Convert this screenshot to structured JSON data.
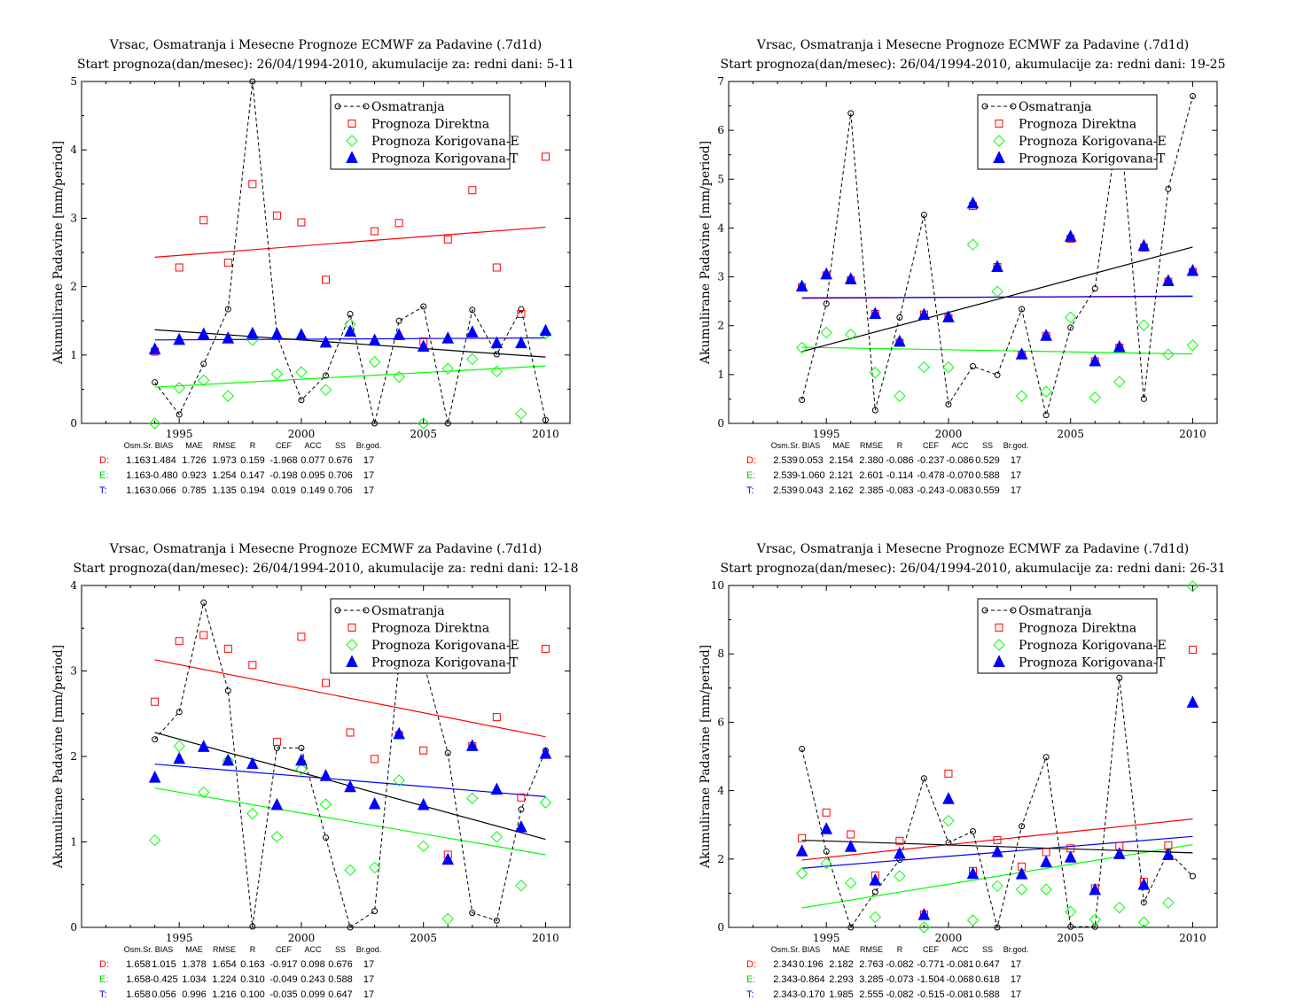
{
  "chart_data": [
    {
      "type": "scatter",
      "title": "Vrsac, Osmatranja i Mesecne Prognoze ECMWF za Padavine (.7d1d)",
      "subtitle": "Start prognoza(dan/mesec): 26/04/1994-2010, akumulacije za: redni dani: 5-11",
      "ylabel": "Akumulirane Padavine [mm/period]",
      "xlabel": "",
      "xlim": [
        1991,
        2011
      ],
      "ylim": [
        0,
        5
      ],
      "yticks": [
        0,
        1,
        2,
        3,
        4,
        5
      ],
      "xticks": [
        1995,
        2000,
        2005,
        2010
      ],
      "grid": false,
      "legend_position": "top-right",
      "x": [
        1994,
        1995,
        1996,
        1997,
        1998,
        1999,
        2000,
        2001,
        2002,
        2003,
        2004,
        2005,
        2006,
        2007,
        2008,
        2009,
        2010
      ],
      "series": [
        {
          "name": "Osmatranja",
          "color": "#000000",
          "marker": "circle",
          "line": "dashed",
          "values": [
            0.6,
            0.13,
            0.87,
            1.67,
            5.0,
            1.29,
            0.34,
            0.7,
            1.6,
            0.0,
            1.5,
            1.71,
            0.0,
            1.66,
            1.01,
            1.67,
            0.05
          ]
        },
        {
          "name": "Prognoza Direktna",
          "color": "#ff0000",
          "marker": "square",
          "values": [
            1.05,
            2.28,
            2.97,
            2.35,
            3.5,
            3.04,
            2.94,
            2.1,
            3.98,
            2.81,
            2.93,
            1.2,
            2.69,
            3.41,
            2.28,
            1.6,
            3.9
          ]
        },
        {
          "name": "Prognoza Korigovana-E",
          "color": "#00ff00",
          "marker": "diamond",
          "values": [
            0.0,
            0.52,
            0.63,
            0.4,
            1.22,
            0.72,
            0.75,
            0.49,
            1.45,
            0.9,
            0.68,
            0.0,
            0.8,
            0.94,
            0.76,
            0.14,
            1.31
          ]
        },
        {
          "name": "Prognoza Korigovana-T",
          "color": "#0000ff",
          "marker": "triangle",
          "values": [
            1.08,
            1.22,
            1.3,
            1.24,
            1.31,
            1.3,
            1.29,
            1.18,
            1.34,
            1.21,
            1.29,
            1.12,
            1.24,
            1.33,
            1.17,
            1.17,
            1.35
          ]
        }
      ],
      "trend_lines": [
        {
          "color": "#ff0000",
          "y_start": 2.43,
          "y_end": 2.87
        },
        {
          "color": "#00ff00",
          "y_start": 0.53,
          "y_end": 0.84
        },
        {
          "color": "#0000ff",
          "y_start": 1.22,
          "y_end": 1.25
        },
        {
          "color": "#000000",
          "y_start": 1.37,
          "y_end": 0.97
        }
      ],
      "stats": {
        "headers": [
          "Osm.Sr.",
          "BIAS",
          "MAE",
          "RMSE",
          "R",
          "CEF",
          "ACC",
          "SS",
          "Br.god."
        ],
        "rows": [
          {
            "label": "D:",
            "color": "#ff0000",
            "values": [
              "1.163",
              "1.484",
              "1.726",
              "1.973",
              "0.159",
              "-1.968",
              "0.077",
              "0.676",
              "17"
            ]
          },
          {
            "label": "E:",
            "color": "#00cc00",
            "values": [
              "1.163",
              "-0.480",
              "0.923",
              "1.254",
              "0.147",
              "-0.198",
              "0.095",
              "0.706",
              "17"
            ]
          },
          {
            "label": "T:",
            "color": "#0000ff",
            "values": [
              "1.163",
              "0.066",
              "0.785",
              "1.135",
              "0.194",
              "0.019",
              "0.149",
              "0.706",
              "17"
            ]
          }
        ]
      }
    },
    {
      "type": "scatter",
      "title": "Vrsac, Osmatranja i Mesecne Prognoze ECMWF za Padavine (.7d1d)",
      "subtitle": "Start prognoza(dan/mesec): 26/04/1994-2010, akumulacije za: redni dani: 19-25",
      "ylabel": "Akumulirane Padavine [mm/period]",
      "xlabel": "",
      "xlim": [
        1991,
        2011
      ],
      "ylim": [
        0,
        7
      ],
      "yticks": [
        0,
        1,
        2,
        3,
        4,
        5,
        6,
        7
      ],
      "xticks": [
        1995,
        2000,
        2005,
        2010
      ],
      "grid": false,
      "legend_position": "top-right",
      "x": [
        1994,
        1995,
        1996,
        1997,
        1998,
        1999,
        2000,
        2001,
        2002,
        2003,
        2004,
        2005,
        2006,
        2007,
        2008,
        2009,
        2010
      ],
      "series": [
        {
          "name": "Osmatranja",
          "color": "#000000",
          "marker": "circle",
          "line": "dashed",
          "values": [
            0.48,
            2.45,
            6.35,
            0.27,
            2.17,
            4.27,
            0.39,
            1.17,
            0.99,
            2.34,
            0.17,
            1.96,
            2.76,
            6.3,
            0.5,
            4.8,
            6.7
          ]
        },
        {
          "name": "Prognoza Direktna",
          "color": "#ff0000",
          "marker": "square",
          "values": [
            2.79,
            3.03,
            2.93,
            2.24,
            1.65,
            2.23,
            2.16,
            4.45,
            3.2,
            1.4,
            1.79,
            3.78,
            1.27,
            1.55,
            3.6,
            2.9,
            3.1
          ]
        },
        {
          "name": "Prognoza Korigovana-E",
          "color": "#00ff00",
          "marker": "diamond",
          "values": [
            1.55,
            1.86,
            1.82,
            1.04,
            0.56,
            1.15,
            1.15,
            3.66,
            2.7,
            0.56,
            0.65,
            2.17,
            0.53,
            0.85,
            2.01,
            1.41,
            1.6
          ]
        },
        {
          "name": "Prognoza Korigovana-T",
          "color": "#0000ff",
          "marker": "triangle",
          "values": [
            2.8,
            3.05,
            2.95,
            2.24,
            1.67,
            2.22,
            2.17,
            4.5,
            3.2,
            1.41,
            1.79,
            3.82,
            1.27,
            1.56,
            3.63,
            2.91,
            3.12
          ]
        }
      ],
      "trend_lines": [
        {
          "color": "#ff0000",
          "y_start": 2.56,
          "y_end": 2.61
        },
        {
          "color": "#00ff00",
          "y_start": 1.56,
          "y_end": 1.42
        },
        {
          "color": "#0000ff",
          "y_start": 2.57,
          "y_end": 2.6
        },
        {
          "color": "#000000",
          "y_start": 1.47,
          "y_end": 3.61
        }
      ],
      "stats": {
        "headers": [
          "Osm.Sr.",
          "BIAS",
          "MAE",
          "RMSE",
          "R",
          "CEF",
          "ACC",
          "SS",
          "Br.god."
        ],
        "rows": [
          {
            "label": "D:",
            "color": "#ff0000",
            "values": [
              "2.539",
              "0.053",
              "2.154",
              "2.380",
              "-0.086",
              "-0.237",
              "-0.086",
              "0.529",
              "17"
            ]
          },
          {
            "label": "E:",
            "color": "#00cc00",
            "values": [
              "2.539",
              "-1.060",
              "2.121",
              "2.601",
              "-0.114",
              "-0.478",
              "-0.070",
              "0.588",
              "17"
            ]
          },
          {
            "label": "T:",
            "color": "#0000ff",
            "values": [
              "2.539",
              "0.043",
              "2.162",
              "2.385",
              "-0.083",
              "-0.243",
              "-0.083",
              "0.559",
              "17"
            ]
          }
        ]
      }
    },
    {
      "type": "scatter",
      "title": "Vrsac, Osmatranja i Mesecne Prognoze ECMWF za Padavine (.7d1d)",
      "subtitle": "Start prognoza(dan/mesec): 26/04/1994-2010, akumulacije za: redni dani: 12-18",
      "ylabel": "Akumulirane Padavine [mm/period]",
      "xlabel": "",
      "xlim": [
        1991,
        2011
      ],
      "ylim": [
        0,
        4
      ],
      "yticks": [
        0,
        1,
        2,
        3,
        4
      ],
      "xticks": [
        1995,
        2000,
        2005,
        2010
      ],
      "grid": false,
      "legend_position": "top-right",
      "x": [
        1994,
        1995,
        1996,
        1997,
        1998,
        1999,
        2000,
        2001,
        2002,
        2003,
        2004,
        2005,
        2006,
        2007,
        2008,
        2009,
        2010
      ],
      "series": [
        {
          "name": "Osmatranja",
          "color": "#000000",
          "marker": "circle",
          "line": "dashed",
          "values": [
            2.2,
            2.52,
            3.8,
            2.77,
            0.01,
            2.1,
            2.1,
            1.05,
            0.0,
            0.19,
            3.1,
            3.1,
            2.04,
            0.17,
            0.08,
            1.38,
            2.07
          ]
        },
        {
          "name": "Prognoza Direktna",
          "color": "#ff0000",
          "marker": "square",
          "values": [
            2.64,
            3.35,
            3.42,
            3.26,
            3.07,
            2.17,
            3.4,
            2.86,
            2.28,
            1.97,
            2.25,
            2.07,
            0.85,
            2.12,
            2.46,
            1.52,
            3.26
          ]
        },
        {
          "name": "Prognoza Korigovana-E",
          "color": "#00ff00",
          "marker": "diamond",
          "values": [
            1.02,
            2.12,
            1.58,
            1.95,
            1.33,
            1.06,
            1.85,
            1.44,
            0.67,
            0.7,
            1.72,
            0.95,
            0.1,
            1.51,
            1.06,
            0.49,
            1.46
          ]
        },
        {
          "name": "Prognoza Korigovana-T",
          "color": "#0000ff",
          "marker": "triangle",
          "values": [
            1.75,
            1.97,
            2.11,
            1.95,
            1.91,
            1.43,
            1.95,
            1.77,
            1.64,
            1.44,
            2.26,
            1.43,
            0.79,
            2.12,
            1.61,
            1.17,
            2.03
          ]
        }
      ],
      "trend_lines": [
        {
          "color": "#ff0000",
          "y_start": 3.13,
          "y_end": 2.23
        },
        {
          "color": "#00ff00",
          "y_start": 1.63,
          "y_end": 0.85
        },
        {
          "color": "#0000ff",
          "y_start": 1.91,
          "y_end": 1.53
        },
        {
          "color": "#000000",
          "y_start": 2.28,
          "y_end": 1.03
        }
      ],
      "stats": {
        "headers": [
          "Osm.Sr.",
          "BIAS",
          "MAE",
          "RMSE",
          "R",
          "CEF",
          "ACC",
          "SS",
          "Br.god."
        ],
        "rows": [
          {
            "label": "D:",
            "color": "#ff0000",
            "values": [
              "1.658",
              "1.015",
              "1.378",
              "1.654",
              "0.163",
              "-0.917",
              "0.098",
              "0.676",
              "17"
            ]
          },
          {
            "label": "E:",
            "color": "#00cc00",
            "values": [
              "1.658",
              "-0.425",
              "1.034",
              "1.224",
              "0.310",
              "-0.049",
              "0.243",
              "0.588",
              "17"
            ]
          },
          {
            "label": "T:",
            "color": "#0000ff",
            "values": [
              "1.658",
              "0.056",
              "0.996",
              "1.216",
              "0.100",
              "-0.035",
              "0.099",
              "0.647",
              "17"
            ]
          }
        ]
      }
    },
    {
      "type": "scatter",
      "title": "Vrsac, Osmatranja i Mesecne Prognoze ECMWF za Padavine (.7d1d)",
      "subtitle": "Start prognoza(dan/mesec): 26/04/1994-2010, akumulacije za: redni dani: 26-31",
      "ylabel": "Akumulirane Padavine [mm/period]",
      "xlabel": "",
      "xlim": [
        1991,
        2011
      ],
      "ylim": [
        0,
        10
      ],
      "yticks": [
        0,
        2,
        4,
        6,
        8,
        10
      ],
      "xticks": [
        1995,
        2000,
        2005,
        2010
      ],
      "grid": false,
      "legend_position": "top-right",
      "x": [
        1994,
        1995,
        1996,
        1997,
        1998,
        1999,
        2000,
        2001,
        2002,
        2003,
        2004,
        2005,
        2006,
        2007,
        2008,
        2009,
        2010
      ],
      "series": [
        {
          "name": "Osmatranja",
          "color": "#000000",
          "marker": "circle",
          "line": "dashed",
          "values": [
            5.22,
            2.22,
            0.0,
            1.04,
            1.98,
            4.36,
            2.48,
            2.81,
            0.0,
            2.96,
            4.98,
            0.02,
            0.02,
            7.3,
            0.73,
            2.21,
            1.5
          ]
        },
        {
          "name": "Prognoza Direktna",
          "color": "#ff0000",
          "marker": "square",
          "values": [
            2.61,
            3.36,
            2.72,
            1.52,
            2.53,
            0.38,
            4.5,
            1.65,
            2.55,
            1.78,
            2.2,
            2.31,
            1.14,
            2.38,
            1.33,
            2.4,
            8.12
          ]
        },
        {
          "name": "Prognoza Korigovana-E",
          "color": "#00ff00",
          "marker": "diamond",
          "values": [
            1.58,
            1.87,
            1.3,
            0.3,
            1.5,
            0.0,
            3.12,
            0.21,
            1.21,
            1.11,
            1.11,
            0.46,
            0.23,
            0.58,
            0.15,
            0.72,
            9.98
          ]
        },
        {
          "name": "Prognoza Korigovana-T",
          "color": "#0000ff",
          "marker": "triangle",
          "values": [
            2.22,
            2.87,
            2.35,
            1.37,
            2.15,
            0.36,
            3.75,
            1.56,
            2.2,
            1.55,
            1.9,
            2.04,
            1.09,
            2.14,
            1.24,
            2.11,
            6.57
          ]
        }
      ],
      "trend_lines": [
        {
          "color": "#ff0000",
          "y_start": 1.97,
          "y_end": 3.17
        },
        {
          "color": "#00ff00",
          "y_start": 0.57,
          "y_end": 2.42
        },
        {
          "color": "#0000ff",
          "y_start": 1.73,
          "y_end": 2.66
        },
        {
          "color": "#000000",
          "y_start": 2.55,
          "y_end": 2.18
        }
      ],
      "stats": {
        "headers": [
          "Osm.Sr.",
          "BIAS",
          "MAE",
          "RMSE",
          "R",
          "CEF",
          "ACC",
          "SS",
          "Br.god."
        ],
        "rows": [
          {
            "label": "D:",
            "color": "#ff0000",
            "values": [
              "2.343",
              "0.196",
              "2.182",
              "2.763",
              "-0.082",
              "-0.771",
              "-0.081",
              "0.647",
              "17"
            ]
          },
          {
            "label": "E:",
            "color": "#00cc00",
            "values": [
              "2.343",
              "-0.864",
              "2.293",
              "3.285",
              "-0.073",
              "-1.504",
              "-0.068",
              "0.618",
              "17"
            ]
          },
          {
            "label": "T:",
            "color": "#0000ff",
            "values": [
              "2.343",
              "-0.170",
              "1.985",
              "2.555",
              "-0.082",
              "-0.515",
              "-0.081",
              "0.588",
              "17"
            ]
          }
        ]
      }
    }
  ]
}
